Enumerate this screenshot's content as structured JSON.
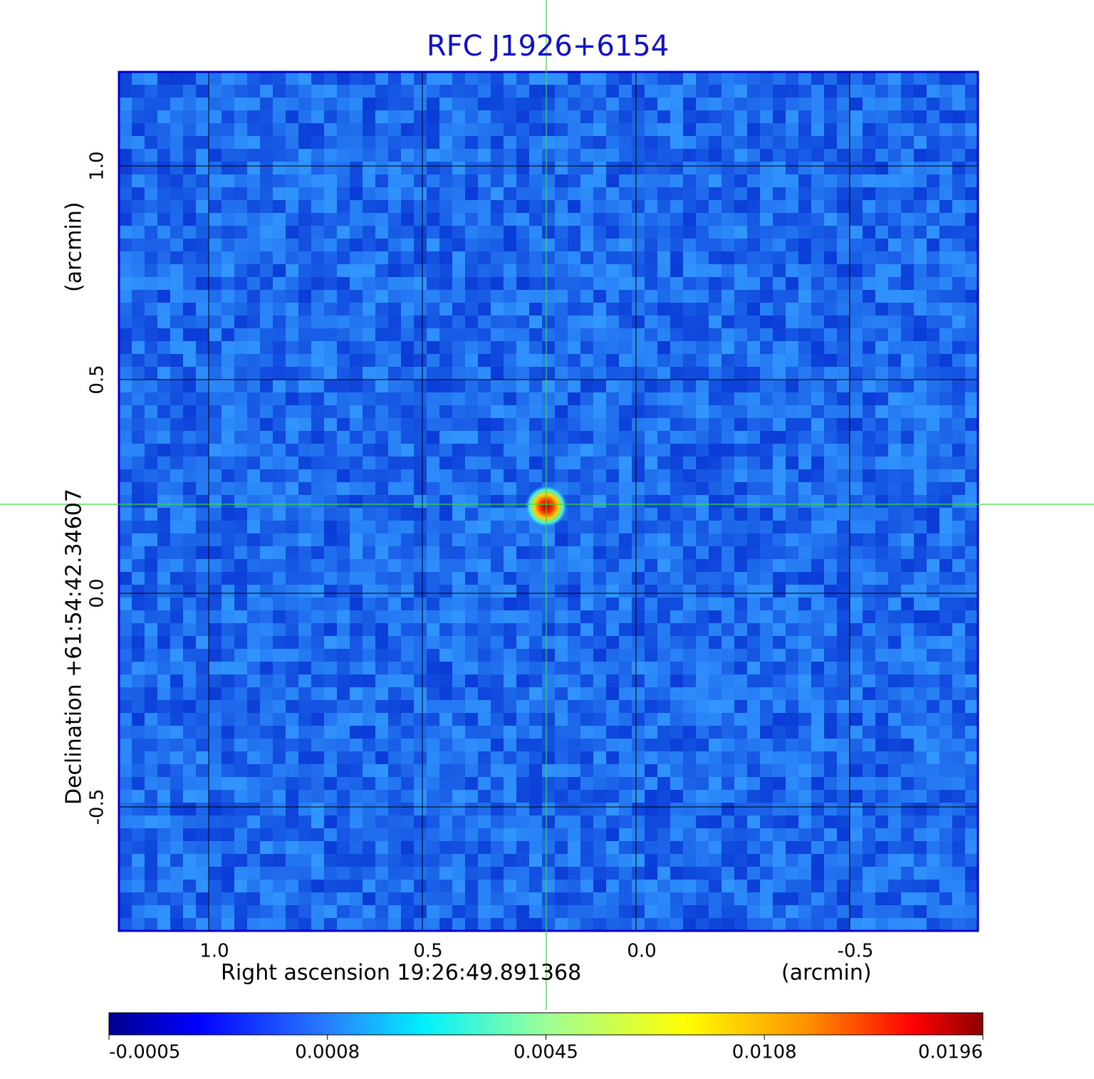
{
  "chart_data": {
    "type": "image",
    "title": "RFC J1926+6154",
    "x_label": "Right ascension  19:26:49.891368",
    "x_unit": "(arcmin)",
    "y_label": "Declination  +61:54:42.34607",
    "y_unit": "(arcmin)",
    "xlim": [
      1.21,
      -0.8
    ],
    "ylim": [
      -0.79,
      1.22
    ],
    "xticks": [
      {
        "value": 1,
        "label": "1.0"
      },
      0.5,
      {
        "value": 0,
        "label": "0.0"
      },
      -0.5
    ],
    "yticks": [
      -0.5,
      {
        "value": 0,
        "label": "0.0"
      },
      0.5,
      {
        "value": 1,
        "label": "1.0"
      }
    ],
    "grid": true,
    "colorbar_ticks": [
      -0.0005,
      0.0008,
      0.0045,
      0.0108,
      0.0196
    ]
  }
}
